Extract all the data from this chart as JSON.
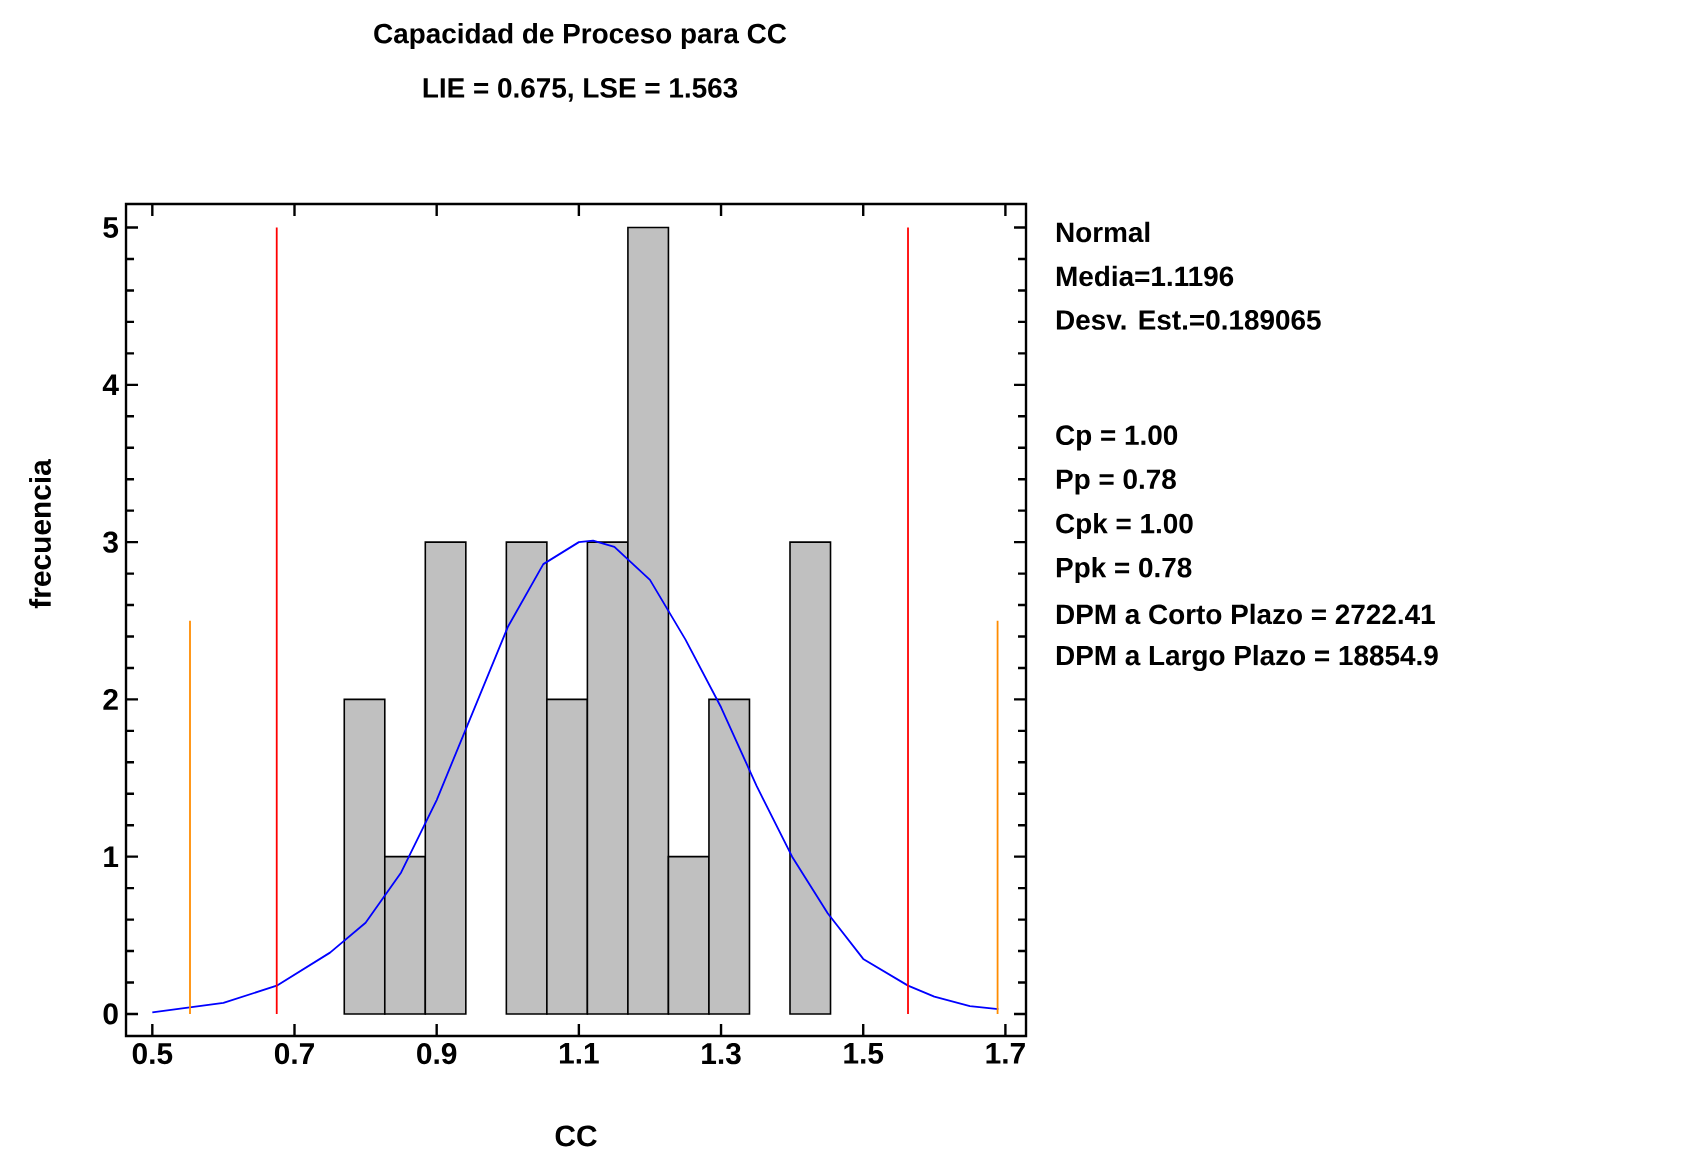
{
  "chart_data": {
    "type": "histogram",
    "title": "Capacidad de Proceso para  CC",
    "subtitle": "LIE = 0.675, LSE = 1.563",
    "xlabel": "CC",
    "ylabel": "frecuencia",
    "bins": [
      0.77,
      0.827,
      0.884,
      0.941,
      0.998,
      1.055,
      1.112,
      1.169,
      1.226,
      1.283,
      1.34,
      1.397,
      1.454
    ],
    "values": [
      2,
      1,
      3,
      0,
      3,
      2,
      3,
      5,
      1,
      2,
      0,
      3
    ],
    "color": "#c0c0c0",
    "series": [
      {
        "type": "line",
        "color": "#0000ff",
        "x": [
          0.5,
          0.6,
          0.675,
          0.75,
          0.8,
          0.85,
          0.9,
          0.95,
          1.0,
          1.05,
          1.1,
          1.12,
          1.15,
          1.2,
          1.25,
          1.3,
          1.35,
          1.4,
          1.45,
          1.5,
          1.563,
          1.6,
          1.65,
          1.69
        ],
        "values": [
          0.01,
          0.07,
          0.18,
          0.39,
          0.58,
          0.9,
          1.36,
          1.91,
          2.46,
          2.86,
          3.0,
          3.01,
          2.97,
          2.76,
          2.38,
          1.95,
          1.45,
          1.0,
          0.64,
          0.35,
          0.18,
          0.11,
          0.05,
          0.03
        ]
      },
      {
        "type": "line",
        "color": "#ff0000",
        "x": [
          0.675,
          0.675
        ],
        "values": [
          0,
          5
        ]
      },
      {
        "type": "line",
        "color": "#ff0000",
        "x": [
          1.563,
          1.563
        ],
        "values": [
          0,
          5
        ]
      },
      {
        "type": "line",
        "color": "#ff8c00",
        "x": [
          0.553,
          0.553
        ],
        "values": [
          0,
          2.5
        ]
      },
      {
        "type": "line",
        "color": "#ff8c00",
        "x": [
          1.689,
          1.689
        ],
        "values": [
          0,
          2.5
        ]
      }
    ],
    "xlim": [
      0.463,
      1.729
    ],
    "ylim": [
      -0.14,
      5.15
    ],
    "xticks": [
      0.5,
      0.7,
      0.9,
      1.1,
      1.3,
      1.5,
      1.7
    ],
    "yticks": [
      0,
      1,
      2,
      3,
      4,
      5
    ],
    "grid": false,
    "annotations": [
      "Normal",
      "Media=1.1196",
      "Desv. Est.=0.189065",
      "Cp = 1.00",
      "Pp = 0.78",
      "Cpk = 1.00",
      "Ppk = 0.78",
      "DPM a Corto Plazo = 2722.41",
      "DPM a Largo Plazo = 18854.9"
    ]
  }
}
